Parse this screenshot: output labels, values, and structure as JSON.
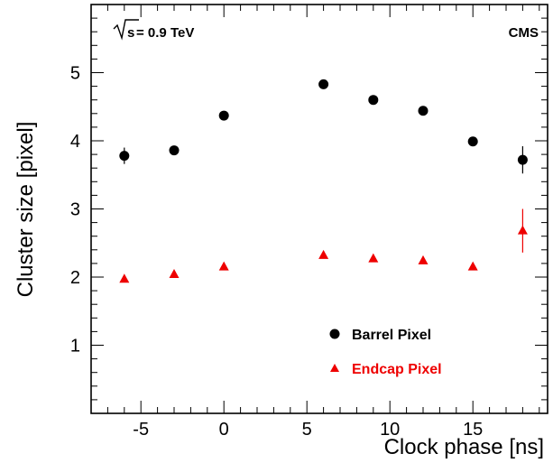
{
  "chart_data": {
    "type": "scatter",
    "xlabel": "Clock phase [ns]",
    "ylabel": "Cluster size [pixel]",
    "xlim": [
      -8,
      19.5
    ],
    "ylim": [
      0,
      6
    ],
    "xticks": [
      -5,
      0,
      5,
      10,
      15
    ],
    "yticks": [
      1,
      2,
      3,
      4,
      5
    ],
    "grid": false,
    "legend_position": "lower-right",
    "annotations": {
      "energy_sqrt": "s",
      "energy_rest": " = 0.9 TeV",
      "experiment": "CMS"
    },
    "series": [
      {
        "name": "Barrel Pixel",
        "marker": "circle",
        "color": "#000000",
        "points": [
          {
            "x": -6,
            "y": 3.78,
            "err": 0.12
          },
          {
            "x": -3,
            "y": 3.86,
            "err": 0.05
          },
          {
            "x": 0,
            "y": 4.37,
            "err": 0.04
          },
          {
            "x": 6,
            "y": 4.83,
            "err": 0.04
          },
          {
            "x": 9,
            "y": 4.6,
            "err": 0.04
          },
          {
            "x": 12,
            "y": 4.44,
            "err": 0.04
          },
          {
            "x": 15,
            "y": 3.99,
            "err": 0.04
          },
          {
            "x": 18,
            "y": 3.72,
            "err": 0.2
          }
        ]
      },
      {
        "name": "Endcap Pixel",
        "marker": "triangle",
        "color": "#ee0000",
        "points": [
          {
            "x": -6,
            "y": 1.97,
            "err": 0.02
          },
          {
            "x": -3,
            "y": 2.04,
            "err": 0.02
          },
          {
            "x": 0,
            "y": 2.15,
            "err": 0.02
          },
          {
            "x": 6,
            "y": 2.32,
            "err": 0.02
          },
          {
            "x": 9,
            "y": 2.27,
            "err": 0.02
          },
          {
            "x": 12,
            "y": 2.24,
            "err": 0.02
          },
          {
            "x": 15,
            "y": 2.15,
            "err": 0.02
          },
          {
            "x": 18,
            "y": 2.68,
            "err": 0.32
          }
        ]
      }
    ]
  }
}
